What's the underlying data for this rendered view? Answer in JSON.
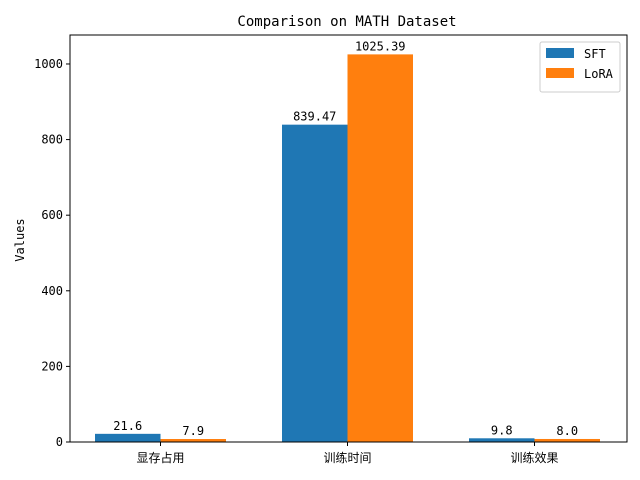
{
  "chart_data": {
    "type": "bar",
    "title": "Comparison on MATH Dataset",
    "xlabel": "",
    "ylabel": "Values",
    "categories": [
      "显存占用",
      "训练时间",
      "训练效果"
    ],
    "series": [
      {
        "name": "SFT",
        "color": "#1f77b4",
        "values": [
          21.6,
          839.47,
          9.8
        ],
        "labels": [
          "21.6",
          "839.47",
          "9.8"
        ]
      },
      {
        "name": "LoRA",
        "color": "#ff7f0e",
        "values": [
          7.9,
          1025.39,
          8.0
        ],
        "labels": [
          "7.9",
          "1025.39",
          "8.0"
        ]
      }
    ],
    "ylim": [
      0,
      1076.66
    ],
    "yticks": [
      0,
      200,
      400,
      600,
      800,
      1000
    ],
    "grid": false,
    "legend_position": "top-right"
  }
}
